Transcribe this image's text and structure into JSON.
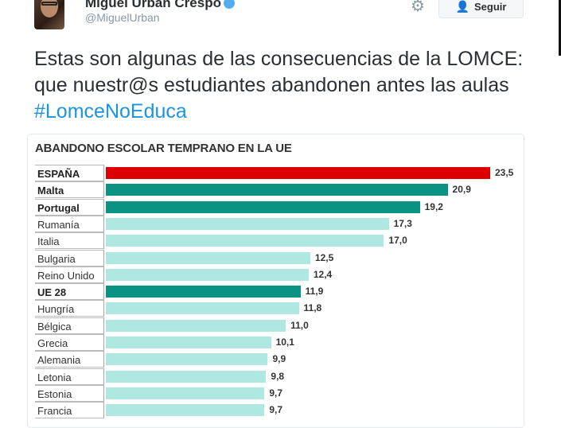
{
  "tweet": {
    "author_name": "Miguel Urbán Crespo",
    "handle": "@MiguelUrban",
    "follow_label": "Seguir",
    "text": "Estas son algunas de las consecuencias de la LOMCE: que nuestr@s estudiantes abandonen antes las aulas ",
    "hashtag": "#LomceNoEduca"
  },
  "colors": {
    "highlight": "#dd0000",
    "bold_series": "#0a9383",
    "default": "#aee8e0",
    "link": "#1b95e0"
  },
  "chart_data": {
    "type": "bar",
    "orientation": "horizontal",
    "title": "ABANDONO ESCOLAR TEMPRANO EN LA UE",
    "categories": [
      "ESPAÑA",
      "Malta",
      "Portugal",
      "Rumanía",
      "Italia",
      "Bulgaria",
      "Reino Unido",
      "UE 28",
      "Hungría",
      "Bélgica",
      "Grecia",
      "Alemania",
      "Letonia",
      "Estonia",
      "Francia"
    ],
    "values": [
      23.5,
      20.9,
      19.2,
      17.3,
      17.0,
      12.5,
      12.4,
      11.9,
      11.8,
      11.0,
      10.1,
      9.9,
      9.8,
      9.7,
      9.7
    ],
    "value_labels": [
      "23,5",
      "20,9",
      "19,2",
      "17,3",
      "17,0",
      "12,5",
      "12,4",
      "11,9",
      "11,8",
      "11,0",
      "10,1",
      "9,9",
      "9,8",
      "9,7",
      "9,7"
    ],
    "bar_colors": [
      "highlight",
      "bold_series",
      "bold_series",
      "default",
      "default",
      "default",
      "default",
      "bold_series",
      "default",
      "default",
      "default",
      "default",
      "default",
      "default",
      "default"
    ],
    "xlim": [
      0,
      23.5
    ]
  }
}
